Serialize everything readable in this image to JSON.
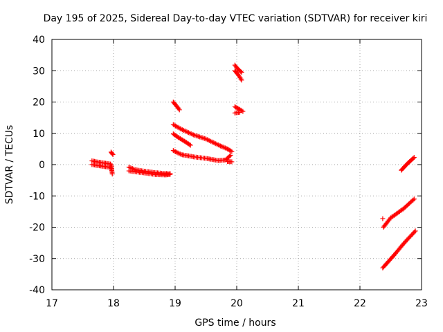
{
  "chart_data": {
    "type": "scatter",
    "title": "Day 195 of 2025, Sidereal Day-to-day VTEC variation (SDTVAR) for receiver kiri",
    "xlabel": "GPS time / hours",
    "ylabel": "SDTVAR / TECUs",
    "xlim": [
      17,
      23
    ],
    "ylim": [
      -40,
      40
    ],
    "xticks": [
      "17",
      "18",
      "19",
      "20",
      "21",
      "22",
      "23"
    ],
    "yticks": [
      "-40",
      "-30",
      "-20",
      "-10",
      "0",
      "10",
      "20",
      "30",
      "40"
    ],
    "grid": true,
    "marker": "+",
    "marker_color": "#ff0000",
    "segments": [
      [
        [
          17.65,
          1.2
        ],
        [
          17.75,
          0.8
        ],
        [
          17.85,
          0.5
        ],
        [
          17.95,
          0.2
        ],
        [
          17.97,
          -0.5
        ]
      ],
      [
        [
          17.65,
          0.0
        ],
        [
          17.75,
          -0.3
        ],
        [
          17.85,
          -0.6
        ],
        [
          17.95,
          -0.9
        ],
        [
          17.97,
          -1.2
        ]
      ],
      [
        [
          17.96,
          4.0
        ],
        [
          17.99,
          3.2
        ]
      ],
      [
        [
          17.97,
          -1.5
        ],
        [
          17.98,
          -3.0
        ]
      ],
      [
        [
          18.25,
          -0.8
        ],
        [
          18.35,
          -1.6
        ],
        [
          18.5,
          -2.1
        ],
        [
          18.65,
          -2.5
        ],
        [
          18.8,
          -2.8
        ],
        [
          18.92,
          -2.9
        ]
      ],
      [
        [
          18.25,
          -2.0
        ],
        [
          18.4,
          -2.4
        ],
        [
          18.55,
          -2.8
        ],
        [
          18.7,
          -3.2
        ],
        [
          18.85,
          -3.3
        ],
        [
          18.92,
          -3.1
        ]
      ],
      [
        [
          18.97,
          20.0
        ],
        [
          19.02,
          18.8
        ],
        [
          19.07,
          17.5
        ]
      ],
      [
        [
          18.97,
          12.8
        ],
        [
          19.1,
          11.3
        ],
        [
          19.3,
          9.5
        ],
        [
          19.5,
          8.2
        ],
        [
          19.7,
          6.3
        ],
        [
          19.85,
          5.0
        ],
        [
          19.92,
          4.2
        ]
      ],
      [
        [
          18.97,
          9.8
        ],
        [
          19.05,
          8.7
        ],
        [
          19.15,
          7.5
        ],
        [
          19.25,
          6.2
        ]
      ],
      [
        [
          18.97,
          4.5
        ],
        [
          19.1,
          3.2
        ],
        [
          19.3,
          2.5
        ],
        [
          19.5,
          2.0
        ],
        [
          19.7,
          1.3
        ],
        [
          19.82,
          1.5
        ],
        [
          19.9,
          3.0
        ]
      ],
      [
        [
          19.85,
          1.0
        ],
        [
          19.92,
          0.9
        ]
      ],
      [
        [
          19.97,
          31.8
        ],
        [
          20.02,
          30.5
        ],
        [
          20.08,
          29.5
        ]
      ],
      [
        [
          19.97,
          30.0
        ],
        [
          20.02,
          28.8
        ],
        [
          20.08,
          27.0
        ]
      ],
      [
        [
          19.97,
          18.5
        ],
        [
          20.05,
          17.6
        ],
        [
          20.1,
          17.0
        ]
      ],
      [
        [
          19.97,
          16.5
        ],
        [
          20.05,
          16.7
        ]
      ],
      [
        [
          22.37,
          -17.3
        ]
      ],
      [
        [
          22.38,
          -20.0
        ],
        [
          22.5,
          -17.0
        ],
        [
          22.7,
          -14.2
        ],
        [
          22.88,
          -11.0
        ]
      ],
      [
        [
          22.37,
          -33.0
        ],
        [
          22.55,
          -29.0
        ],
        [
          22.72,
          -25.0
        ],
        [
          22.9,
          -21.2
        ]
      ],
      [
        [
          22.67,
          -1.8
        ],
        [
          22.78,
          0.5
        ],
        [
          22.88,
          2.3
        ]
      ]
    ]
  }
}
